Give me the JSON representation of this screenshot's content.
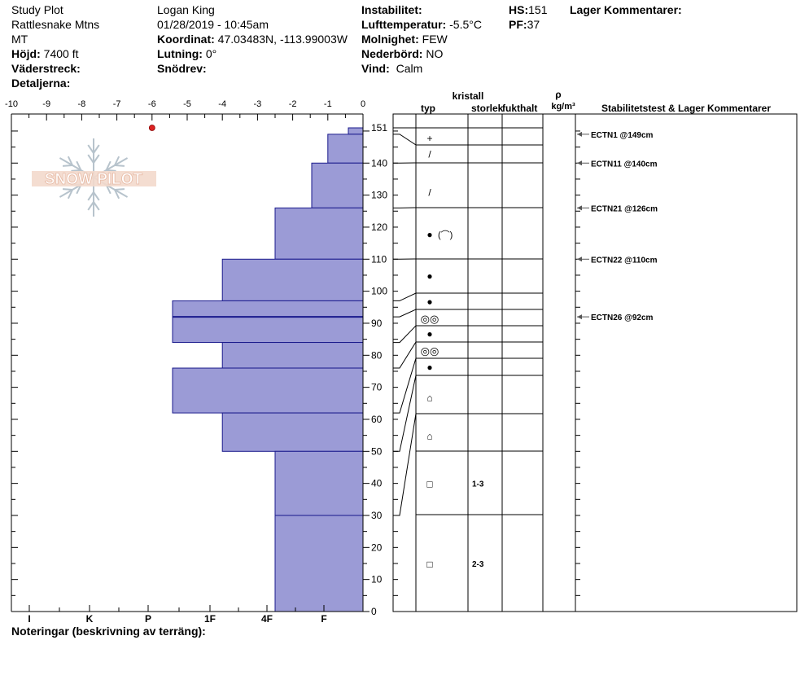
{
  "header": {
    "site_lines": [
      "Study Plot",
      "Rattlesnake Mtns",
      "MT"
    ],
    "elevation_label": "Höjd:",
    "elevation_value": "7400 ft",
    "aspect_label": "Väderstreck:",
    "details_label": "Detaljerna:",
    "observer": "Logan King",
    "datetime": "01/28/2019 - 10:45am",
    "coord_label": "Koordinat:",
    "coord_value": "47.03483N, -113.99003W",
    "slope_label": "Lutning:",
    "slope_value": "0°",
    "drift_label": "Snödrev:",
    "instability_label": "Instabilitet:",
    "airtemp_label": "Lufttemperatur:",
    "airtemp_value": "-5.5°C",
    "cloud_label": "Molnighet:",
    "cloud_value": "FEW",
    "precip_label": "Nederbörd:",
    "precip_value": "NO",
    "wind_label": "Vind:",
    "wind_value": "Calm",
    "hs_label": "HS:",
    "hs_value": "151",
    "pf_label": "PF:",
    "pf_value": "37",
    "layer_comments_label": "Lager Kommentarer:"
  },
  "footer": {
    "notes_label": "Noteringar (beskrivning av terräng):"
  },
  "logo": {
    "text": "SNOW PILOT"
  },
  "columns": {
    "crystal": "kristall",
    "type": "typ",
    "size": "storlek",
    "moisture": "fukthalt",
    "rho": "ρ",
    "density_unit": "kg/m³",
    "stability": "Stabilitetstest & Lager Kommentarer"
  },
  "chart_data": {
    "type": "bar",
    "title": "",
    "temp_axis": {
      "range": [
        -10,
        0
      ],
      "ticks": [
        "-10",
        "-9",
        "-8",
        "-7",
        "-6",
        "-5",
        "-4",
        "-3",
        "-2",
        "-1",
        "0"
      ]
    },
    "hardness_axis": {
      "labels": [
        "I",
        "K",
        "P",
        "1F",
        "4F",
        "F"
      ]
    },
    "height_axis": {
      "range": [
        0,
        151
      ],
      "ticks": [
        "0",
        "10",
        "20",
        "30",
        "40",
        "50",
        "60",
        "70",
        "80",
        "90",
        "100",
        "110",
        "120",
        "130",
        "140",
        "151"
      ]
    },
    "temperature_points": [
      {
        "height": 151,
        "temp": -6
      }
    ],
    "layers": [
      {
        "top": 151,
        "bottom": 149,
        "hardness": 0.5
      },
      {
        "top": 149,
        "bottom": 140,
        "hardness": 1.2
      },
      {
        "top": 140,
        "bottom": 126,
        "hardness": 1.75
      },
      {
        "top": 126,
        "bottom": 110,
        "hardness": 3.0
      },
      {
        "top": 110,
        "bottom": 97,
        "hardness": 4.8
      },
      {
        "top": 97,
        "bottom": 92,
        "hardness": 6.5
      },
      {
        "top": 92,
        "bottom": 84,
        "hardness": 6.5
      },
      {
        "top": 84,
        "bottom": 76,
        "hardness": 4.8
      },
      {
        "top": 76,
        "bottom": 62,
        "hardness": 6.5
      },
      {
        "top": 62,
        "bottom": 50,
        "hardness": 4.8
      },
      {
        "top": 50,
        "bottom": 30,
        "hardness": 3.0
      },
      {
        "top": 30,
        "bottom": 0,
        "hardness": 3.0
      }
    ],
    "grain_rows": [
      {
        "height": 148,
        "symbol": "+",
        "size": ""
      },
      {
        "height": 143,
        "symbol": "/",
        "size": ""
      },
      {
        "height": 131,
        "symbol": "/",
        "size": ""
      },
      {
        "height": 118,
        "symbol": "●",
        "size": "",
        "extra": "(⌒)"
      },
      {
        "height": 105,
        "symbol": "●",
        "size": ""
      },
      {
        "height": 97,
        "symbol": "●",
        "size": ""
      },
      {
        "height": 91.5,
        "symbol": "◎◎",
        "size": ""
      },
      {
        "height": 87,
        "symbol": "●",
        "size": ""
      },
      {
        "height": 81.5,
        "symbol": "◎◎",
        "size": ""
      },
      {
        "height": 76.5,
        "symbol": "●",
        "size": ""
      },
      {
        "height": 67,
        "symbol": "⌂",
        "size": ""
      },
      {
        "height": 55,
        "symbol": "⌂",
        "size": ""
      },
      {
        "height": 40,
        "symbol": "□",
        "size": "1-3"
      },
      {
        "height": 15,
        "symbol": "□",
        "size": "2-3"
      }
    ],
    "stability_tests": [
      {
        "height": 149,
        "label": "ECTN1 @149cm"
      },
      {
        "height": 140,
        "label": "ECTN11 @140cm"
      },
      {
        "height": 126,
        "label": "ECTN21 @126cm"
      },
      {
        "height": 110,
        "label": "ECTN22 @110cm"
      },
      {
        "height": 92,
        "label": "ECTN26 @92cm"
      }
    ]
  }
}
